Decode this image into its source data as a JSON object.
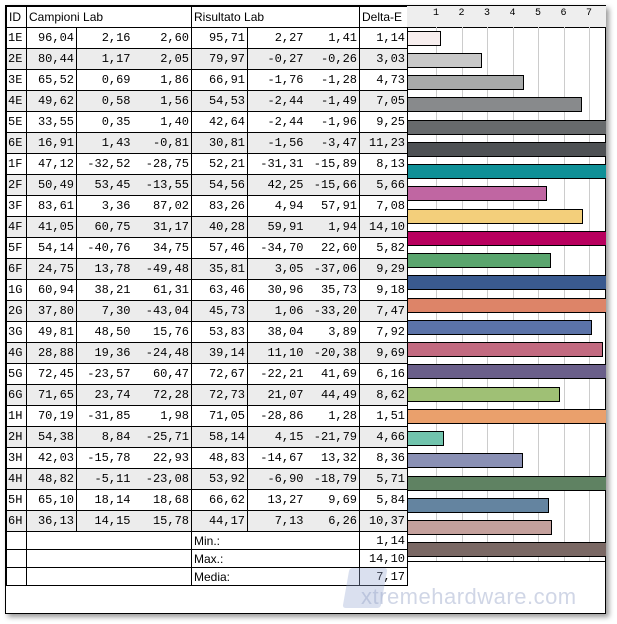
{
  "headers": {
    "id": "ID",
    "campioni": "Campioni Lab",
    "risultato": "Risultato Lab",
    "delta": "Delta-E"
  },
  "axis_ticks": [
    "1",
    "2",
    "3",
    "4",
    "5",
    "6",
    "7"
  ],
  "rows": [
    {
      "id": "1E",
      "c": [
        "96,04",
        "2,16",
        "2,60"
      ],
      "r": [
        "95,71",
        "2,27",
        "1,41"
      ],
      "de": "1,14",
      "v": 1.14,
      "color": "#f7eeee"
    },
    {
      "id": "2E",
      "c": [
        "80,44",
        "1,17",
        "2,05"
      ],
      "r": [
        "79,97",
        "-0,27",
        "-0,26"
      ],
      "de": "3,03",
      "v": 3.03,
      "color": "#c8c8c8"
    },
    {
      "id": "3E",
      "c": [
        "65,52",
        "0,69",
        "1,86"
      ],
      "r": [
        "66,91",
        "-1,76",
        "-1,28"
      ],
      "de": "4,73",
      "v": 4.73,
      "color": "#a8aaaa"
    },
    {
      "id": "4E",
      "c": [
        "49,62",
        "0,58",
        "1,56"
      ],
      "r": [
        "54,53",
        "-2,44",
        "-1,49"
      ],
      "de": "7,05",
      "v": 7.05,
      "color": "#888a8c"
    },
    {
      "id": "5E",
      "c": [
        "33,55",
        "0,35",
        "1,40"
      ],
      "r": [
        "42,64",
        "-2,44",
        "-1,96"
      ],
      "de": "9,25",
      "v": 9.25,
      "color": "#676a6c"
    },
    {
      "id": "6E",
      "c": [
        "16,91",
        "1,43",
        "-0,81"
      ],
      "r": [
        "30,81",
        "-1,56",
        "-3,47"
      ],
      "de": "11,23",
      "v": 11.23,
      "color": "#4e5154"
    },
    {
      "id": "1F",
      "c": [
        "47,12",
        "-32,52",
        "-28,75"
      ],
      "r": [
        "52,21",
        "-31,31",
        "-15,89"
      ],
      "de": "8,13",
      "v": 8.13,
      "color": "#0f9097"
    },
    {
      "id": "2F",
      "c": [
        "50,49",
        "53,45",
        "-13,55"
      ],
      "r": [
        "54,56",
        "42,25",
        "-15,66"
      ],
      "de": "5,66",
      "v": 5.66,
      "color": "#c066a2"
    },
    {
      "id": "3F",
      "c": [
        "83,61",
        "3,36",
        "87,02"
      ],
      "r": [
        "83,26",
        "4,94",
        "57,91"
      ],
      "de": "7,08",
      "v": 7.08,
      "color": "#f3cf7b"
    },
    {
      "id": "4F",
      "c": [
        "41,05",
        "60,75",
        "31,17"
      ],
      "r": [
        "40,28",
        "59,91",
        "1,94"
      ],
      "de": "14,10",
      "v": 14.1,
      "color": "#b8005e"
    },
    {
      "id": "5F",
      "c": [
        "54,14",
        "-40,76",
        "34,75"
      ],
      "r": [
        "57,46",
        "-34,70",
        "22,60"
      ],
      "de": "5,82",
      "v": 5.82,
      "color": "#5aa56e"
    },
    {
      "id": "6F",
      "c": [
        "24,75",
        "13,78",
        "-49,48"
      ],
      "r": [
        "35,81",
        "3,05",
        "-37,06"
      ],
      "de": "9,29",
      "v": 9.29,
      "color": "#3a5a8f"
    },
    {
      "id": "1G",
      "c": [
        "60,94",
        "38,21",
        "61,31"
      ],
      "r": [
        "63,46",
        "30,96",
        "35,73"
      ],
      "de": "9,18",
      "v": 9.18,
      "color": "#dd8468"
    },
    {
      "id": "2G",
      "c": [
        "37,80",
        "7,30",
        "-43,04"
      ],
      "r": [
        "45,73",
        "1,06",
        "-33,20"
      ],
      "de": "7,47",
      "v": 7.47,
      "color": "#5b73a8"
    },
    {
      "id": "3G",
      "c": [
        "49,81",
        "48,50",
        "15,76"
      ],
      "r": [
        "53,83",
        "38,04",
        "3,89"
      ],
      "de": "7,92",
      "v": 7.92,
      "color": "#c26a80"
    },
    {
      "id": "4G",
      "c": [
        "28,88",
        "19,36",
        "-24,48"
      ],
      "r": [
        "39,14",
        "11,10",
        "-20,38"
      ],
      "de": "9,69",
      "v": 9.69,
      "color": "#6a5f8a"
    },
    {
      "id": "5G",
      "c": [
        "72,45",
        "-23,57",
        "60,47"
      ],
      "r": [
        "72,67",
        "-22,21",
        "41,69"
      ],
      "de": "6,16",
      "v": 6.16,
      "color": "#9fc075"
    },
    {
      "id": "6G",
      "c": [
        "71,65",
        "23,74",
        "72,28"
      ],
      "r": [
        "72,73",
        "21,07",
        "44,49"
      ],
      "de": "8,62",
      "v": 8.62,
      "color": "#eaa06c"
    },
    {
      "id": "1H",
      "c": [
        "70,19",
        "-31,85",
        "1,98"
      ],
      "r": [
        "71,05",
        "-28,86",
        "1,28"
      ],
      "de": "1,51",
      "v": 1.51,
      "color": "#71c4ad"
    },
    {
      "id": "2H",
      "c": [
        "54,38",
        "8,84",
        "-25,71"
      ],
      "r": [
        "58,14",
        "4,15",
        "-21,79"
      ],
      "de": "4,66",
      "v": 4.66,
      "color": "#8a90b4"
    },
    {
      "id": "3H",
      "c": [
        "42,03",
        "-15,78",
        "22,93"
      ],
      "r": [
        "48,83",
        "-14,67",
        "13,32"
      ],
      "de": "8,36",
      "v": 8.36,
      "color": "#5f8262"
    },
    {
      "id": "4H",
      "c": [
        "48,82",
        "-5,11",
        "-23,08"
      ],
      "r": [
        "53,92",
        "-6,90",
        "-18,79"
      ],
      "de": "5,71",
      "v": 5.71,
      "color": "#6484a0"
    },
    {
      "id": "5H",
      "c": [
        "65,10",
        "18,14",
        "18,68"
      ],
      "r": [
        "66,62",
        "13,27",
        "9,69"
      ],
      "de": "5,84",
      "v": 5.84,
      "color": "#c4a09c"
    },
    {
      "id": "6H",
      "c": [
        "36,13",
        "14,15",
        "15,78"
      ],
      "r": [
        "44,17",
        "7,13",
        "6,26"
      ],
      "de": "10,37",
      "v": 10.37,
      "color": "#7a6864"
    }
  ],
  "summary": [
    {
      "label": "Min.:",
      "value": "1,14"
    },
    {
      "label": "Max.:",
      "value": "14,10"
    },
    {
      "label": "Media:",
      "value": "7,17"
    }
  ],
  "watermark": "xtremehardware.com"
}
